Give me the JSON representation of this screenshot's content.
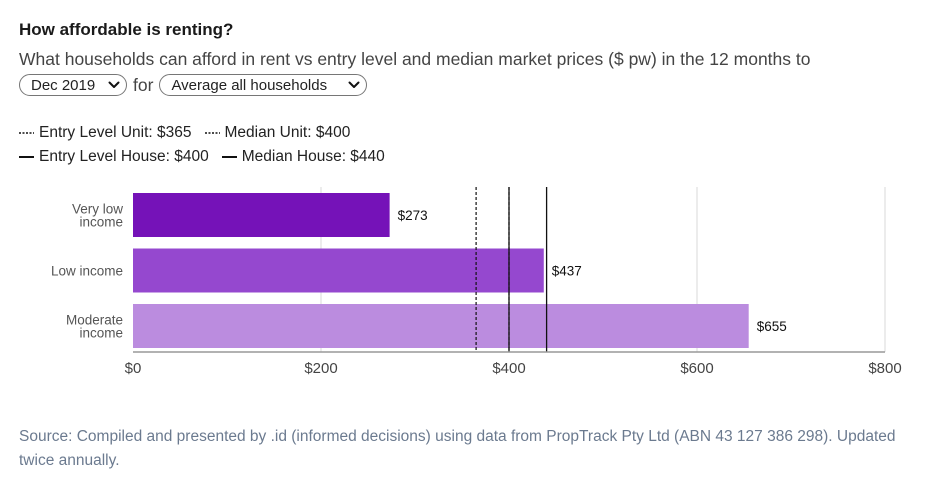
{
  "header": {
    "title": "How affordable is renting?",
    "subtitle": "What households can afford in rent vs entry level and median market prices ($ pw) in the 12 months to"
  },
  "controls": {
    "period_value": "Dec 2019",
    "connector": "for",
    "household_value": "Average all households"
  },
  "legend": {
    "items": [
      {
        "label": "Entry Level Unit: $365",
        "style": "dotted"
      },
      {
        "label": "Median Unit: $400",
        "style": "dotted"
      },
      {
        "label": "Entry Level House: $400",
        "style": "solid"
      },
      {
        "label": "Median House: $440",
        "style": "solid"
      }
    ]
  },
  "chart_data": {
    "type": "bar",
    "orientation": "horizontal",
    "categories": [
      "Very low income",
      "Low income",
      "Moderate income"
    ],
    "category_lines": [
      [
        "Very low",
        "income"
      ],
      [
        "Low income"
      ],
      [
        "Moderate",
        "income"
      ]
    ],
    "values": [
      273,
      437,
      655
    ],
    "value_labels": [
      "$273",
      "$437",
      "$655"
    ],
    "bar_colors": [
      "#7512b8",
      "#9548cf",
      "#bb8cdf"
    ],
    "xlim": [
      0,
      800
    ],
    "x_ticks": [
      0,
      200,
      400,
      600,
      800
    ],
    "x_tick_labels": [
      "$0",
      "$200",
      "$400",
      "$600",
      "$800"
    ],
    "grid": true,
    "reference_lines": [
      {
        "name": "Entry Level Unit",
        "value": 365,
        "style": "dotted"
      },
      {
        "name": "Median Unit",
        "value": 400,
        "style": "dotted"
      },
      {
        "name": "Entry Level House",
        "value": 400,
        "style": "solid"
      },
      {
        "name": "Median House",
        "value": 440,
        "style": "solid"
      }
    ]
  },
  "footer": {
    "source": "Source: Compiled and presented by .id (informed decisions) using data from PropTrack Pty Ltd (ABN 43 127 386 298). Updated twice annually."
  }
}
